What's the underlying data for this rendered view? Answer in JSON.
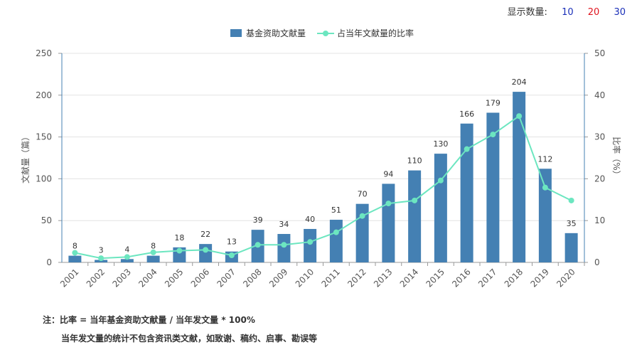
{
  "display_count": {
    "label": "显示数量:",
    "options": [
      {
        "text": "10",
        "color": "#1a2fb8"
      },
      {
        "text": "20",
        "color": "#e0141e"
      },
      {
        "text": "30",
        "color": "#1a2fb8"
      }
    ]
  },
  "notes": {
    "line1": "注：比率 = 当年基金资助文献量 / 当年发文量 * 100%",
    "line2": "当年发文量的统计不包含资讯类文献，如致谢、稿约、启事、勘误等"
  },
  "colors": {
    "bar": "#4480b3",
    "line": "#6ce6c0"
  },
  "chart_data": {
    "type": "bar",
    "categories": [
      "2001",
      "2002",
      "2003",
      "2004",
      "2005",
      "2006",
      "2007",
      "2008",
      "2009",
      "2010",
      "2011",
      "2012",
      "2013",
      "2014",
      "2015",
      "2016",
      "2017",
      "2018",
      "2019",
      "2020"
    ],
    "series": [
      {
        "name": "基金资助文献量",
        "type": "bar",
        "axis": "left",
        "values": [
          8,
          3,
          4,
          8,
          18,
          22,
          13,
          39,
          34,
          40,
          51,
          70,
          94,
          110,
          130,
          166,
          179,
          204,
          112,
          35
        ]
      },
      {
        "name": "占当年文献量的比率",
        "type": "line",
        "axis": "right",
        "values": [
          2.3,
          1.0,
          1.3,
          2.4,
          2.8,
          3.0,
          1.7,
          4.2,
          4.2,
          4.9,
          7.2,
          11.1,
          14.1,
          14.8,
          19.6,
          27.1,
          30.6,
          35.0,
          17.9,
          14.8
        ]
      }
    ],
    "ylabel": "文献量（篇）",
    "y2label": "比率（%）",
    "ylim": [
      0,
      250
    ],
    "y2lim": [
      0,
      50
    ],
    "yticks": [
      0,
      50,
      100,
      150,
      200,
      250
    ],
    "y2ticks": [
      0,
      10,
      20,
      30,
      40,
      50
    ],
    "legend_position": "top-center",
    "grid": true
  }
}
